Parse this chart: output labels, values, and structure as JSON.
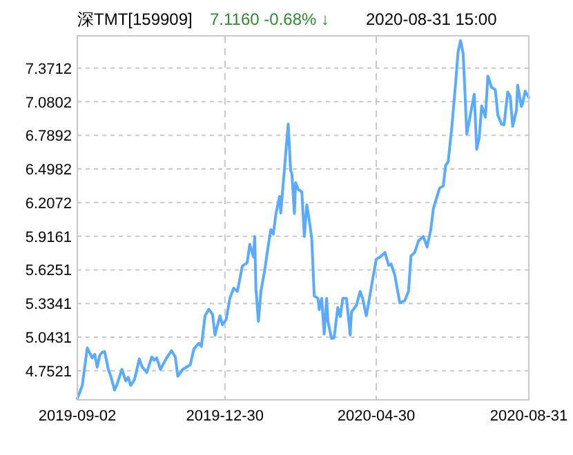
{
  "chart_data": {
    "type": "line",
    "title": "深TMT[159909]",
    "subtitle": "7.1160  -0.68% ↓",
    "annotations": [
      "2020-08-31 15:00"
    ],
    "xlim": [
      "2019-09-02",
      "2020-08-31"
    ],
    "xticks": [
      "2019-09-02",
      "2019-12-30",
      "2020-04-30",
      "2020-08-31"
    ],
    "ylim": [
      4.5,
      7.65
    ],
    "yticks": [
      4.7521,
      5.0431,
      5.3341,
      5.6251,
      5.9161,
      6.2072,
      6.4982,
      6.7892,
      7.0802,
      7.3712
    ],
    "grid": true,
    "line_style": "solid",
    "series": [
      {
        "color": "#5aabff",
        "x": [
          "2019-09-02",
          "2019-09-06",
          "2019-09-10",
          "2019-09-14",
          "2019-09-16",
          "2019-09-18",
          "2019-09-20",
          "2019-09-22",
          "2019-09-24",
          "2019-09-27",
          "2019-09-29",
          "2019-10-02",
          "2019-10-04",
          "2019-10-08",
          "2019-10-11",
          "2019-10-13",
          "2019-10-15",
          "2019-10-18",
          "2019-10-22",
          "2019-10-24",
          "2019-10-28",
          "2019-11-01",
          "2019-11-03",
          "2019-11-05",
          "2019-11-08",
          "2019-11-13",
          "2019-11-17",
          "2019-11-20",
          "2019-11-22",
          "2019-11-26",
          "2019-12-02",
          "2019-12-05",
          "2019-12-09",
          "2019-12-11",
          "2019-12-14",
          "2019-12-17",
          "2019-12-20",
          "2019-12-22",
          "2019-12-26",
          "2019-12-28",
          "2019-12-31",
          "2020-01-03",
          "2020-01-06",
          "2020-01-09",
          "2020-01-11",
          "2020-01-13",
          "2020-01-17",
          "2020-01-19",
          "2020-01-22",
          "2020-01-23",
          "2020-01-24",
          "2020-01-26",
          "2020-01-28",
          "2020-01-31",
          "2020-02-02",
          "2020-02-05",
          "2020-02-07",
          "2020-02-09",
          "2020-02-12",
          "2020-02-13",
          "2020-02-16",
          "2020-02-19",
          "2020-02-21",
          "2020-02-22",
          "2020-02-24",
          "2020-02-25",
          "2020-02-27",
          "2020-03-01",
          "2020-03-03",
          "2020-03-05",
          "2020-03-07",
          "2020-03-09",
          "2020-03-11",
          "2020-03-14",
          "2020-03-15",
          "2020-03-17",
          "2020-03-19",
          "2020-03-21",
          "2020-03-22",
          "2020-03-25",
          "2020-03-27",
          "2020-03-30",
          "2020-04-01",
          "2020-04-03",
          "2020-04-06",
          "2020-04-09",
          "2020-04-10",
          "2020-04-14",
          "2020-04-17",
          "2020-04-19",
          "2020-04-22",
          "2020-04-24",
          "2020-04-27",
          "2020-04-30",
          "2020-05-04",
          "2020-05-07",
          "2020-05-10",
          "2020-05-12",
          "2020-05-15",
          "2020-05-19",
          "2020-05-23",
          "2020-05-26",
          "2020-05-28",
          "2020-05-31",
          "2020-06-03",
          "2020-06-07",
          "2020-06-10",
          "2020-06-13",
          "2020-06-15",
          "2020-06-20",
          "2020-06-23",
          "2020-06-25",
          "2020-06-27",
          "2020-06-30",
          "2020-07-03",
          "2020-07-05",
          "2020-07-07",
          "2020-07-09",
          "2020-07-10",
          "2020-07-12",
          "2020-07-15",
          "2020-07-18",
          "2020-07-20",
          "2020-07-22",
          "2020-07-24",
          "2020-07-27",
          "2020-07-29",
          "2020-08-01",
          "2020-08-04",
          "2020-08-06",
          "2020-08-09",
          "2020-08-11",
          "2020-08-14",
          "2020-08-16",
          "2020-08-18",
          "2020-08-21",
          "2020-08-22",
          "2020-08-25",
          "2020-08-26",
          "2020-08-28",
          "2020-08-31"
        ],
        "values": [
          4.51,
          4.625,
          4.95,
          4.863,
          4.895,
          4.783,
          4.883,
          4.911,
          4.918,
          4.764,
          4.704,
          4.585,
          4.633,
          4.764,
          4.664,
          4.696,
          4.625,
          4.672,
          4.855,
          4.791,
          4.736,
          4.871,
          4.843,
          4.863,
          4.764,
          4.863,
          4.926,
          4.871,
          4.704,
          4.764,
          4.803,
          4.942,
          4.99,
          4.962,
          5.228,
          5.284,
          5.24,
          5.061,
          5.228,
          5.149,
          5.196,
          5.379,
          5.466,
          5.438,
          5.545,
          5.657,
          5.688,
          5.847,
          5.736,
          5.914,
          5.458,
          5.18,
          5.438,
          5.617,
          5.768,
          5.974,
          5.934,
          6.101,
          6.26,
          6.117,
          6.498,
          6.887,
          6.482,
          6.458,
          6.113,
          6.379,
          6.323,
          6.299,
          5.914,
          6.188,
          6.053,
          5.895,
          5.399,
          5.379,
          5.28,
          5.379,
          5.069,
          5.379,
          5.18,
          5.03,
          5.037,
          5.299,
          5.22,
          5.379,
          5.379,
          5.061,
          5.26,
          5.319,
          5.438,
          5.379,
          5.228,
          5.347,
          5.537,
          5.716,
          5.744,
          5.776,
          5.664,
          5.676,
          5.577,
          5.339,
          5.359,
          5.438,
          5.744,
          5.776,
          5.875,
          5.914,
          5.823,
          5.974,
          6.153,
          6.331,
          6.351,
          6.53,
          6.561,
          6.867,
          7.244,
          7.514,
          7.609,
          7.502,
          7.283,
          6.799,
          6.974,
          7.145,
          6.668,
          6.768,
          7.045,
          6.946,
          7.303,
          7.204,
          7.184,
          6.966,
          6.887,
          6.879,
          7.164,
          7.125,
          6.867,
          7.006,
          7.224,
          7.038,
          7.065,
          7.172,
          7.116
        ]
      }
    ]
  }
}
